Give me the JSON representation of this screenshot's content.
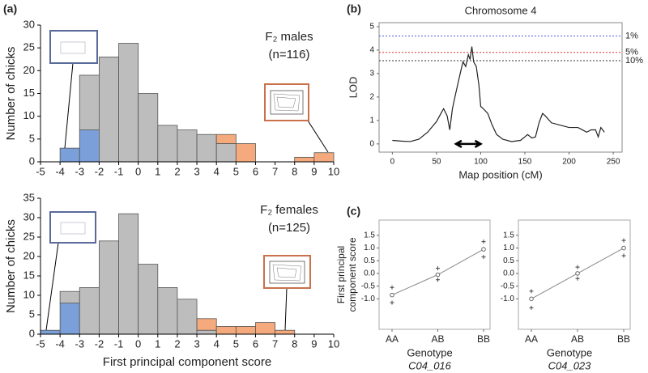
{
  "panel_labels": [
    "(a)",
    "(b)",
    "(c)"
  ],
  "chart_data": [
    {
      "type": "histogram",
      "annotation": [
        "F₂ males",
        "(n=116)"
      ],
      "ylabel": "Number of chicks",
      "bins": [
        -5,
        -4,
        -3,
        -2,
        -1,
        0,
        1,
        2,
        3,
        4,
        5,
        6,
        7,
        8,
        9,
        10
      ],
      "series": [
        {
          "color": "#7b9fd9",
          "values": [
            0,
            3,
            7,
            0,
            0,
            0,
            0,
            0,
            0,
            0,
            0,
            0,
            0,
            0,
            0
          ]
        },
        {
          "color": "#bdbdbd",
          "values": [
            0,
            0,
            12,
            23,
            26,
            15,
            8,
            7,
            6,
            4,
            0,
            0,
            0,
            0,
            0
          ]
        },
        {
          "color": "#f4aa7c",
          "values": [
            0,
            0,
            0,
            0,
            0,
            0,
            0,
            0,
            0,
            2,
            4,
            0,
            0,
            1,
            2
          ]
        }
      ],
      "xlim": [
        -5,
        10
      ],
      "ylim": [
        0,
        30
      ],
      "xticks": [
        -5,
        -4,
        -3,
        -2,
        -1,
        0,
        1,
        2,
        3,
        4,
        5,
        6,
        7,
        8,
        9,
        10
      ],
      "yticks": [
        0,
        5,
        10,
        15,
        20,
        25,
        30
      ]
    },
    {
      "type": "histogram",
      "annotation": [
        "F₂ females",
        "(n=125)"
      ],
      "ylabel": "Number of chicks",
      "xlabel": "First principal component score",
      "bins": [
        -5,
        -4,
        -3,
        -2,
        -1,
        0,
        1,
        2,
        3,
        4,
        5,
        6,
        7,
        8,
        9,
        10
      ],
      "series": [
        {
          "color": "#7b9fd9",
          "values": [
            1,
            8,
            0,
            0,
            0,
            0,
            0,
            0,
            0,
            0,
            0,
            0,
            0,
            0,
            0
          ]
        },
        {
          "color": "#bdbdbd",
          "values": [
            0,
            3,
            12,
            24,
            31,
            18,
            12,
            9,
            1,
            0,
            0,
            0,
            0,
            0,
            0
          ]
        },
        {
          "color": "#f4aa7c",
          "values": [
            0,
            0,
            0,
            0,
            0,
            0,
            0,
            0,
            3,
            2,
            2,
            3,
            1,
            0,
            0
          ]
        }
      ],
      "xlim": [
        -5,
        10
      ],
      "ylim": [
        0,
        35
      ],
      "xticks": [
        -5,
        -4,
        -3,
        -2,
        -1,
        0,
        1,
        2,
        3,
        4,
        5,
        6,
        7,
        8,
        9,
        10
      ],
      "yticks": [
        0,
        5,
        10,
        15,
        20,
        25,
        30,
        35
      ]
    },
    {
      "type": "line",
      "title": "Chromosome 4",
      "xlabel": "Map position (cM)",
      "ylabel": "LOD",
      "x": [
        0,
        10,
        20,
        30,
        40,
        50,
        55,
        58,
        62,
        65,
        68,
        72,
        75,
        78,
        80,
        83,
        86,
        88,
        90,
        92,
        95,
        98,
        100,
        103,
        108,
        113,
        118,
        125,
        135,
        145,
        150,
        153,
        158,
        162,
        166,
        170,
        173,
        180,
        190,
        200,
        210,
        215,
        220,
        225,
        230,
        233,
        236,
        240
      ],
      "y": [
        0.15,
        0.12,
        0.1,
        0.2,
        0.5,
        0.95,
        1.3,
        1.5,
        1.2,
        0.6,
        1.5,
        2.2,
        2.7,
        3.2,
        3.5,
        3.3,
        3.8,
        3.6,
        4.15,
        3.5,
        3.3,
        2.5,
        1.6,
        1.5,
        1.3,
        0.8,
        0.4,
        0.2,
        0.1,
        0.15,
        0.3,
        0.4,
        0.25,
        0.3,
        0.9,
        1.3,
        1.2,
        0.9,
        0.8,
        0.7,
        0.7,
        0.6,
        0.5,
        0.6,
        0.6,
        0.3,
        0.7,
        0.5
      ],
      "color": "#222222",
      "thresholds": [
        {
          "label": "1%",
          "value": 4.6,
          "color": "#4a5de0"
        },
        {
          "label": "5%",
          "value": 3.9,
          "color": "#e03030"
        },
        {
          "label": "10%",
          "value": 3.55,
          "color": "#333333"
        }
      ],
      "interval": [
        72,
        100
      ],
      "xlim": [
        -15,
        260
      ],
      "ylim": [
        -0.35,
        5.17
      ],
      "xticks": [
        0,
        50,
        100,
        150,
        200,
        250
      ],
      "yticks": [
        0,
        1,
        2,
        3,
        4,
        5
      ]
    },
    {
      "type": "genotype",
      "ylabel": [
        "First principal",
        "component score"
      ],
      "xlabel": "Genotype",
      "marker": "C04_016",
      "categories": [
        "AA",
        "AB",
        "BB"
      ],
      "means": [
        -0.85,
        -0.05,
        0.95
      ],
      "points": [
        [
          -0.55,
          -1.15
        ],
        [
          0.2,
          -0.25
        ],
        [
          1.25,
          0.65
        ]
      ],
      "ylim": [
        -2.2,
        2.1
      ],
      "yticks": [
        {
          "value": -1,
          "label": "-1.0"
        },
        -0.5,
        {
          "value": 0,
          "label": "0.0"
        },
        0.5,
        {
          "value": 1,
          "label": "1.0"
        },
        1.5
      ]
    },
    {
      "type": "genotype",
      "xlabel": "Genotype",
      "marker": "C04_023",
      "categories": [
        "AA",
        "AB",
        "BB"
      ],
      "means": [
        -1.0,
        0.0,
        1.0
      ],
      "points": [
        [
          -0.7,
          -1.35
        ],
        [
          0.25,
          -0.2
        ],
        [
          1.3,
          0.7
        ]
      ],
      "ylim": [
        -2.2,
        2.1
      ],
      "yticks": [
        {
          "value": -1,
          "label": "-1.0"
        },
        -0.5,
        {
          "value": 0,
          "label": "0.0"
        },
        0.5,
        {
          "value": 1,
          "label": "1.0"
        },
        1.5
      ]
    }
  ]
}
